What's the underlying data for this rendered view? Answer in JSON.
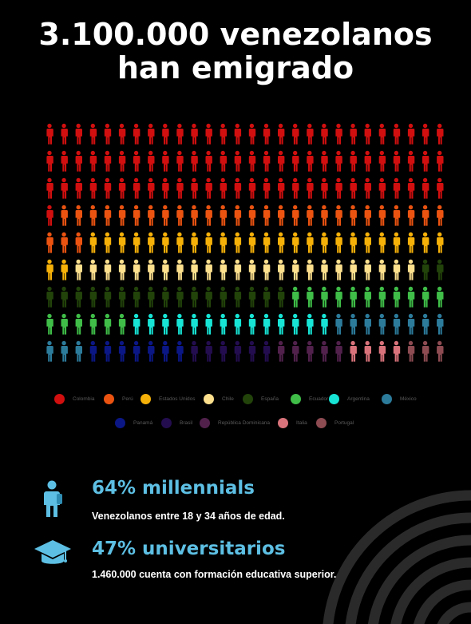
{
  "title": {
    "line1": "3.100.000 venezolanos",
    "line2": "han emigrado"
  },
  "chart_data": {
    "type": "pictogram",
    "title": "3.100.000 venezolanos han emigrado",
    "units_total": 252,
    "categories": [
      "Colombia",
      "Perú",
      "Estados Unidos",
      "Chile",
      "España",
      "Ecuador",
      "Argentina",
      "México",
      "Panamá",
      "Brasil",
      "República Dominicana",
      "Italia",
      "Portugal"
    ],
    "values": [
      85,
      30,
      27,
      24,
      19,
      17,
      14,
      11,
      7,
      6,
      5,
      4,
      3
    ],
    "colors": [
      "#d10f0f",
      "#eb5311",
      "#f6b109",
      "#fde08e",
      "#22430a",
      "#3fbd48",
      "#17e4d5",
      "#2c7b9b",
      "#0b1785",
      "#230d4f",
      "#51214c",
      "#d9737b",
      "#8d4b52"
    ]
  },
  "legend": [
    {
      "label": "Colombia",
      "color": "#d10f0f"
    },
    {
      "label": "Perú",
      "color": "#eb5311"
    },
    {
      "label": "Estados Unidos",
      "color": "#f6b109"
    },
    {
      "label": "Chile",
      "color": "#fde08e"
    },
    {
      "label": "España",
      "color": "#22430a"
    },
    {
      "label": "Ecuador",
      "color": "#3fbd48"
    },
    {
      "label": "Argentina",
      "color": "#17e4d5"
    },
    {
      "label": "México",
      "color": "#2c7b9b"
    },
    {
      "label": "Panamá",
      "color": "#0b1785"
    },
    {
      "label": "Brasil",
      "color": "#230d4f"
    },
    {
      "label": "República Dominicana",
      "color": "#51214c"
    },
    {
      "label": "Italia",
      "color": "#d9737b"
    },
    {
      "label": "Portugal",
      "color": "#8d4b52"
    }
  ],
  "stats": [
    {
      "title": "64% millennials",
      "description": "Venezolanos entre 18 y 34 años de edad.",
      "icon": "student-backpack-icon"
    },
    {
      "title": "47% universitarios",
      "description": "1.460.000 cuenta con formación educativa superior.",
      "icon": "graduation-cap-icon"
    }
  ],
  "accent_color": "#5dbfe3"
}
